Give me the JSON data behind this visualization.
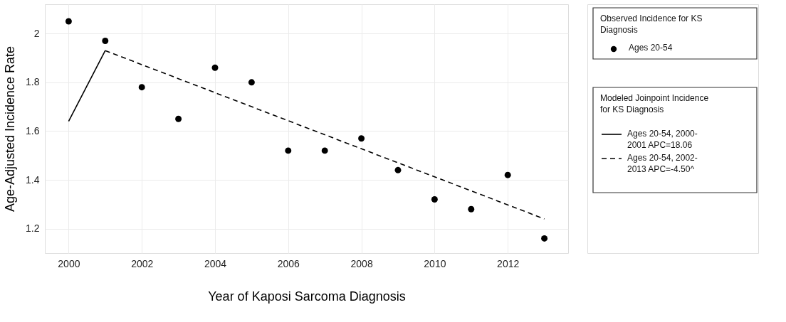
{
  "chart_data": {
    "type": "scatter",
    "xlabel": "Year of Kaposi Sarcoma Diagnosis",
    "ylabel": "Age-Adjusted Incidence Rate",
    "legend_title": "Observed Incidence for KS\nDiagnosis",
    "annotations": [
      "Modeled Joinpoint Incidence\nfor KS Diagnosis"
    ],
    "xlim": [
      1999.35,
      2013.65
    ],
    "ylim": [
      1.1,
      2.12
    ],
    "xticks": [
      2000,
      2002,
      2004,
      2006,
      2008,
      2010,
      2012
    ],
    "yticks": [
      1.2,
      1.4,
      1.6,
      1.8,
      2
    ],
    "grid": true,
    "legend": "right",
    "series": [
      {
        "name": "Ages 20-54",
        "marker": "circle",
        "color": "#000000",
        "x": [
          2000,
          2001,
          2002,
          2003,
          2004,
          2005,
          2006,
          2007,
          2008,
          2009,
          2010,
          2011,
          2012,
          2013
        ],
        "values": [
          2.05,
          1.97,
          1.78,
          1.65,
          1.86,
          1.8,
          1.52,
          1.52,
          1.57,
          1.44,
          1.32,
          1.28,
          1.42,
          1.16
        ]
      },
      {
        "name": "Ages 20-54, 2000-\n2001 APC=18.06",
        "type": "line",
        "line_style": "solid",
        "color": "#000000",
        "x": [
          2000,
          2001
        ],
        "values": [
          1.64,
          1.93
        ]
      },
      {
        "name": "Ages 20-54, 2002-\n2013 APC=-4.50^",
        "type": "line",
        "line_style": "dashed",
        "color": "#000000",
        "x": [
          2001,
          2013
        ],
        "values": [
          1.93,
          1.24
        ]
      }
    ]
  }
}
